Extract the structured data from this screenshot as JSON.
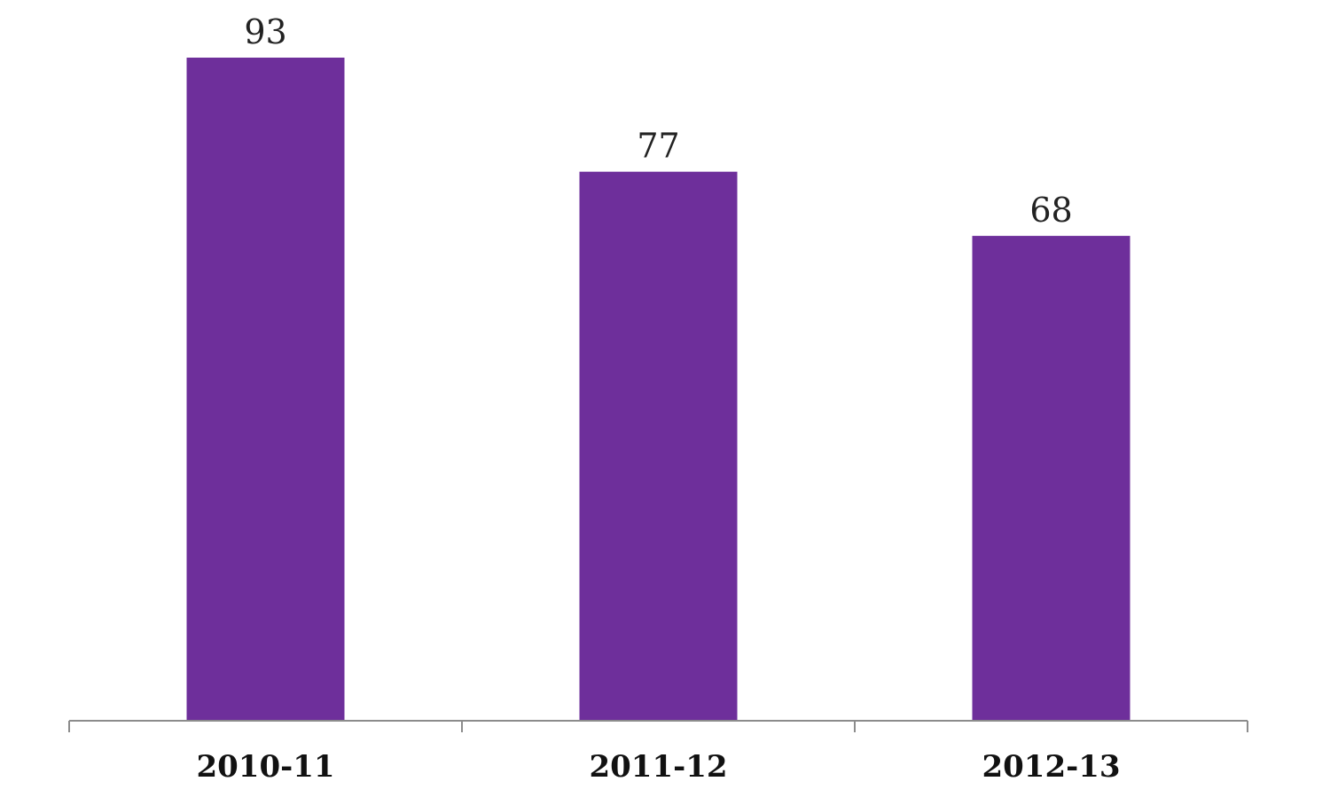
{
  "chart_data": {
    "type": "bar",
    "categories": [
      "2010-11",
      "2011-12",
      "2012-13"
    ],
    "values": [
      93,
      77,
      68
    ],
    "data_labels": [
      "93",
      "77",
      "68"
    ],
    "title": "",
    "xlabel": "",
    "ylabel": "",
    "ylim": [
      0,
      93
    ],
    "grid": false,
    "legend": "none",
    "bar_color": "#6e2f9b",
    "axis_color": "#8c8c8c"
  }
}
